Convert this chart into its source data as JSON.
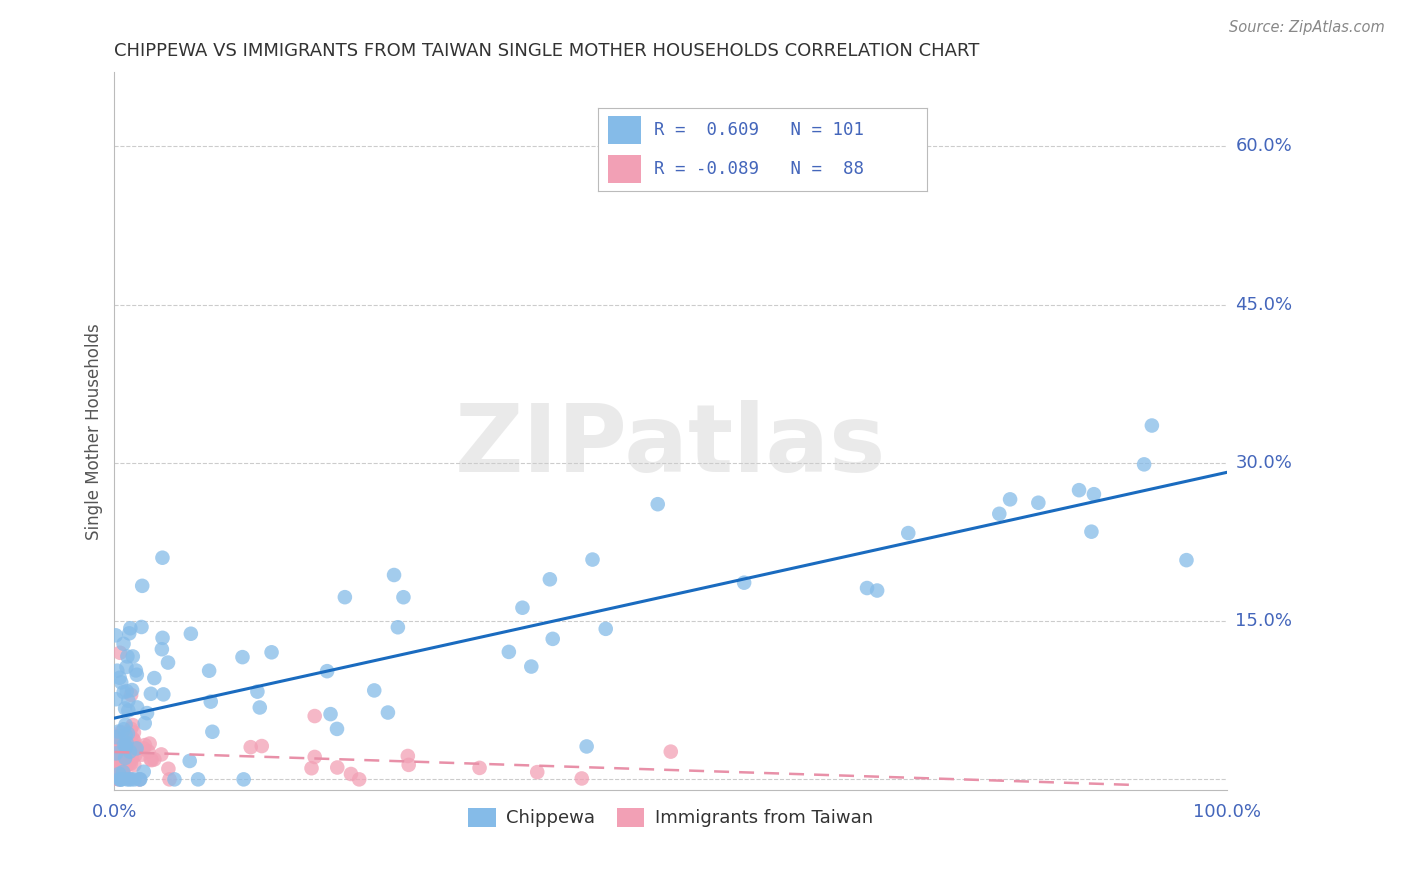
{
  "title": "CHIPPEWA VS IMMIGRANTS FROM TAIWAN SINGLE MOTHER HOUSEHOLDS CORRELATION CHART",
  "source": "Source: ZipAtlas.com",
  "ylabel": "Single Mother Households",
  "xlim": [
    0.0,
    1.0
  ],
  "ylim": [
    -0.01,
    0.67
  ],
  "yticks": [
    0.0,
    0.15,
    0.3,
    0.45,
    0.6
  ],
  "ytick_labels": [
    "",
    "15.0%",
    "30.0%",
    "45.0%",
    "60.0%"
  ],
  "chippewa_color": "#85BBE8",
  "taiwan_color": "#F2A0B5",
  "line_chippewa_color": "#1A6BBF",
  "line_taiwan_color": "#E890A8",
  "background_color": "#FFFFFF",
  "chippewa_R": 0.609,
  "chippewa_N": 101,
  "taiwan_R": -0.089,
  "taiwan_N": 88,
  "watermark_text": "ZIPatlas",
  "watermark_color": "#CCCCCC",
  "watermark_alpha": 0.4,
  "grid_color": "#CCCCCC",
  "grid_linestyle": "--",
  "grid_linewidth": 0.8,
  "tick_color": "#4466BB",
  "title_color": "#333333",
  "ylabel_color": "#555555",
  "source_color": "#888888"
}
